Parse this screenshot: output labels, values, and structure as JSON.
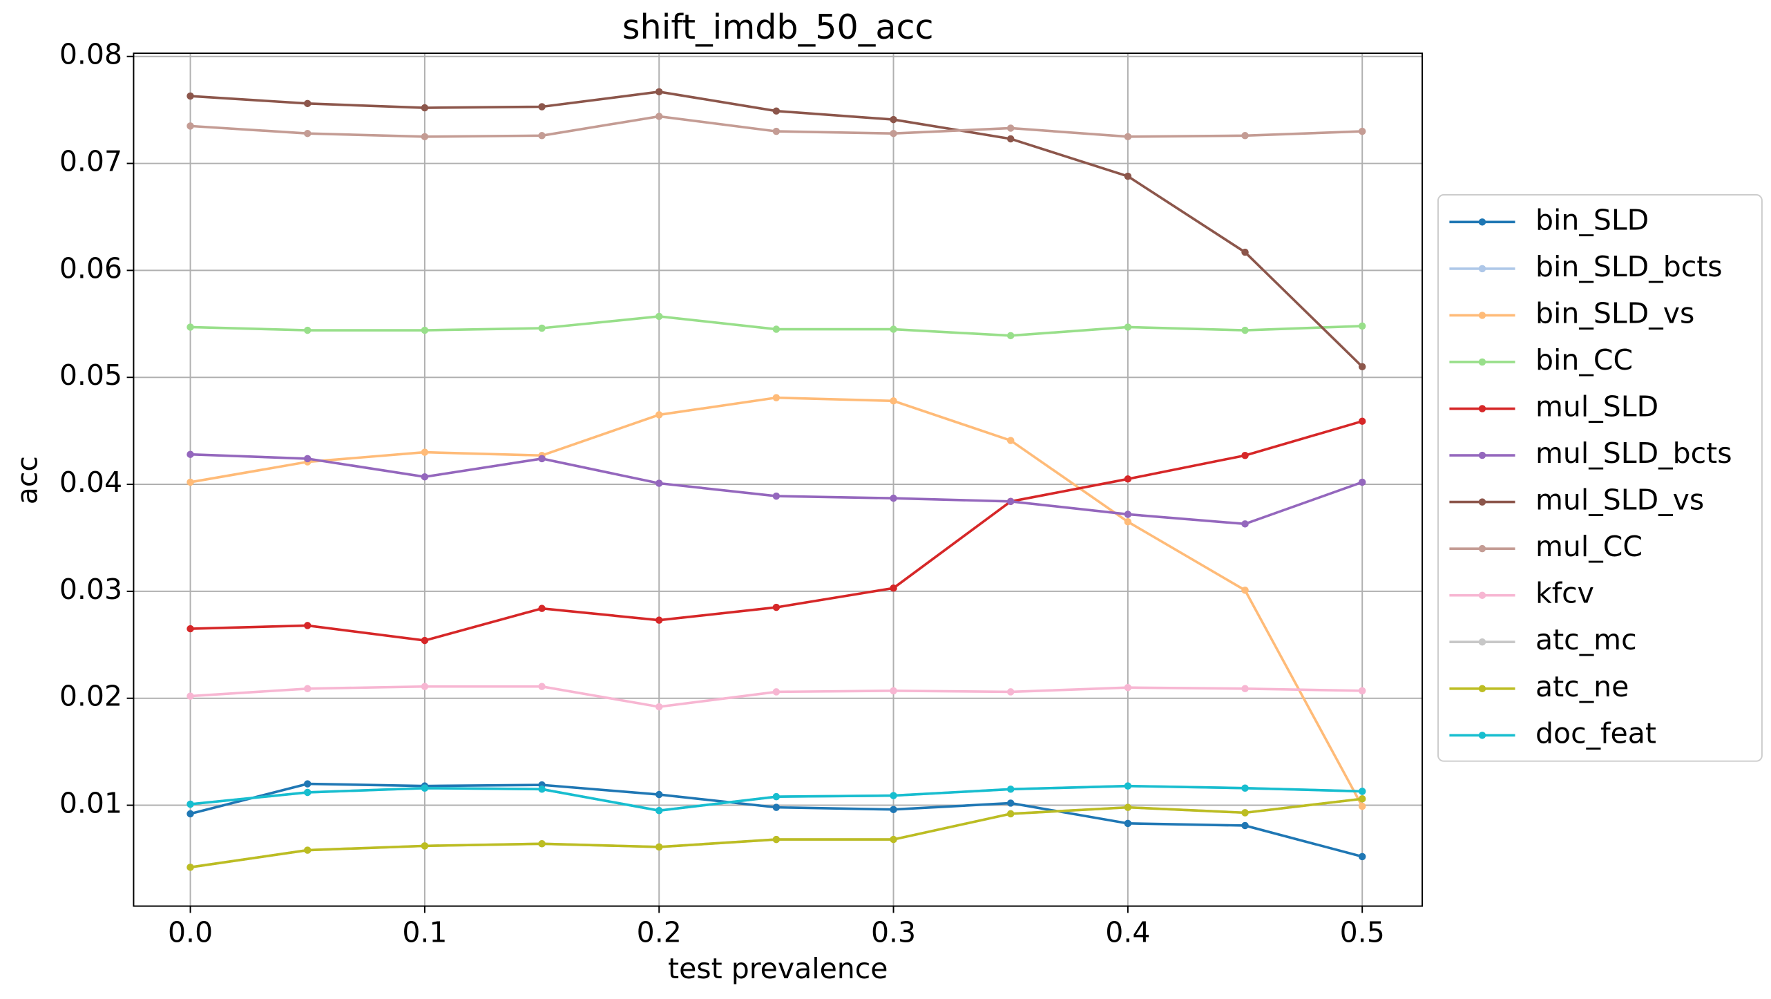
{
  "chart_data": {
    "type": "line",
    "title": "shift_imdb_50_acc",
    "xlabel": "test prevalence",
    "ylabel": "acc",
    "x": [
      0,
      0.05,
      0.1,
      0.15,
      0.2,
      0.25,
      0.3,
      0.35,
      0.4,
      0.45,
      0.5
    ],
    "xlim": [
      -0.0242,
      0.5256
    ],
    "ylim": [
      0.00057,
      0.0803
    ],
    "xticks": [
      {
        "value": 0,
        "label": "0.0"
      },
      0.1,
      0.2,
      0.3,
      0.4,
      0.5
    ],
    "yticks": [
      0.01,
      0.02,
      0.03,
      0.04,
      0.05,
      0.06,
      0.07,
      0.08
    ],
    "grid": true,
    "legend": "outside right",
    "series": [
      {
        "name": "bin_SLD",
        "color": "#1f77b4",
        "values": [
          0.0092,
          0.012,
          0.0118,
          0.0119,
          0.011,
          0.0098,
          0.0096,
          0.0102,
          0.0083,
          0.0081,
          0.0052
        ]
      },
      {
        "name": "bin_SLD_bcts",
        "color": "#aec7e8",
        "values": [
          0.0101,
          0.0112,
          0.0116,
          0.0115,
          0.0095,
          0.0108,
          0.0109,
          0.0115,
          0.0118,
          0.0116,
          0.0113
        ]
      },
      {
        "name": "bin_SLD_vs",
        "color": "#ffbb78",
        "values": [
          0.0402,
          0.0421,
          0.043,
          0.0427,
          0.0465,
          0.0481,
          0.0478,
          0.0441,
          0.0365,
          0.0301,
          0.0099
        ]
      },
      {
        "name": "bin_CC",
        "color": "#98df8a",
        "values": [
          0.0547,
          0.0544,
          0.0544,
          0.0546,
          0.0557,
          0.0545,
          0.0545,
          0.0539,
          0.0547,
          0.0544,
          0.0548
        ]
      },
      {
        "name": "mul_SLD",
        "color": "#d62728",
        "values": [
          0.0265,
          0.0268,
          0.0254,
          0.0284,
          0.0273,
          0.0285,
          0.0303,
          0.0384,
          0.0405,
          0.0427,
          0.0459
        ]
      },
      {
        "name": "mul_SLD_bcts",
        "color": "#9467bd",
        "values": [
          0.0428,
          0.0424,
          0.0407,
          0.0424,
          0.0401,
          0.0389,
          0.0387,
          0.0384,
          0.0372,
          0.0363,
          0.0402
        ]
      },
      {
        "name": "mul_SLD_vs",
        "color": "#8c564b",
        "values": [
          0.0763,
          0.0756,
          0.0752,
          0.0753,
          0.0767,
          0.0749,
          0.0741,
          0.0723,
          0.0688,
          0.0617,
          0.051
        ]
      },
      {
        "name": "mul_CC",
        "color": "#c49c94",
        "values": [
          0.0735,
          0.0728,
          0.0725,
          0.0726,
          0.0744,
          0.073,
          0.0728,
          0.0733,
          0.0725,
          0.0726,
          0.073
        ]
      },
      {
        "name": "kfcv",
        "color": "#f7b6d2",
        "values": [
          0.0202,
          0.0209,
          0.0211,
          0.0211,
          0.0192,
          0.0206,
          0.0207,
          0.0206,
          0.021,
          0.0209,
          0.0207
        ]
      },
      {
        "name": "atc_mc",
        "color": "#c7c7c7",
        "values": [
          0.0042,
          0.0058,
          0.0062,
          0.0064,
          0.0061,
          0.0068,
          0.0068,
          0.0092,
          0.0098,
          0.0093,
          0.0106
        ]
      },
      {
        "name": "atc_ne",
        "color": "#bcbd22",
        "values": [
          0.0042,
          0.0058,
          0.0062,
          0.0064,
          0.0061,
          0.0068,
          0.0068,
          0.0092,
          0.0098,
          0.0093,
          0.0106
        ]
      },
      {
        "name": "doc_feat",
        "color": "#17becf",
        "values": [
          0.0101,
          0.0112,
          0.0116,
          0.0115,
          0.0095,
          0.0108,
          0.0109,
          0.0115,
          0.0118,
          0.0116,
          0.0113
        ]
      }
    ]
  }
}
